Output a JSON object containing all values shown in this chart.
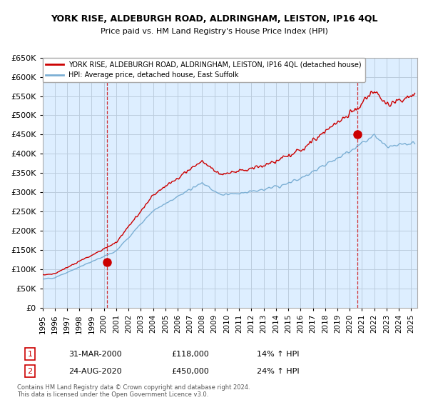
{
  "title": "YORK RISE, ALDEBURGH ROAD, ALDRINGHAM, LEISTON, IP16 4QL",
  "subtitle": "Price paid vs. HM Land Registry's House Price Index (HPI)",
  "ylim": [
    0,
    650000
  ],
  "yticks": [
    0,
    50000,
    100000,
    150000,
    200000,
    250000,
    300000,
    350000,
    400000,
    450000,
    500000,
    550000,
    600000,
    650000
  ],
  "xlim_start": 1995.0,
  "xlim_end": 2025.5,
  "sale1_year": 2000.25,
  "sale1_price": 118000,
  "sale1_label": "1",
  "sale1_date": "31-MAR-2000",
  "sale1_pct": "14%",
  "sale2_year": 2020.65,
  "sale2_price": 450000,
  "sale2_label": "2",
  "sale2_date": "24-AUG-2020",
  "sale2_pct": "24%",
  "hpi_color": "#7bafd4",
  "price_color": "#cc0000",
  "grid_color": "#bbccdd",
  "background_color": "#ffffff",
  "plot_bg_color": "#ddeeff",
  "legend_label_price": "YORK RISE, ALDEBURGH ROAD, ALDRINGHAM, LEISTON, IP16 4QL (detached house)",
  "legend_label_hpi": "HPI: Average price, detached house, East Suffolk",
  "footnote": "Contains HM Land Registry data © Crown copyright and database right 2024.\nThis data is licensed under the Open Government Licence v3.0."
}
